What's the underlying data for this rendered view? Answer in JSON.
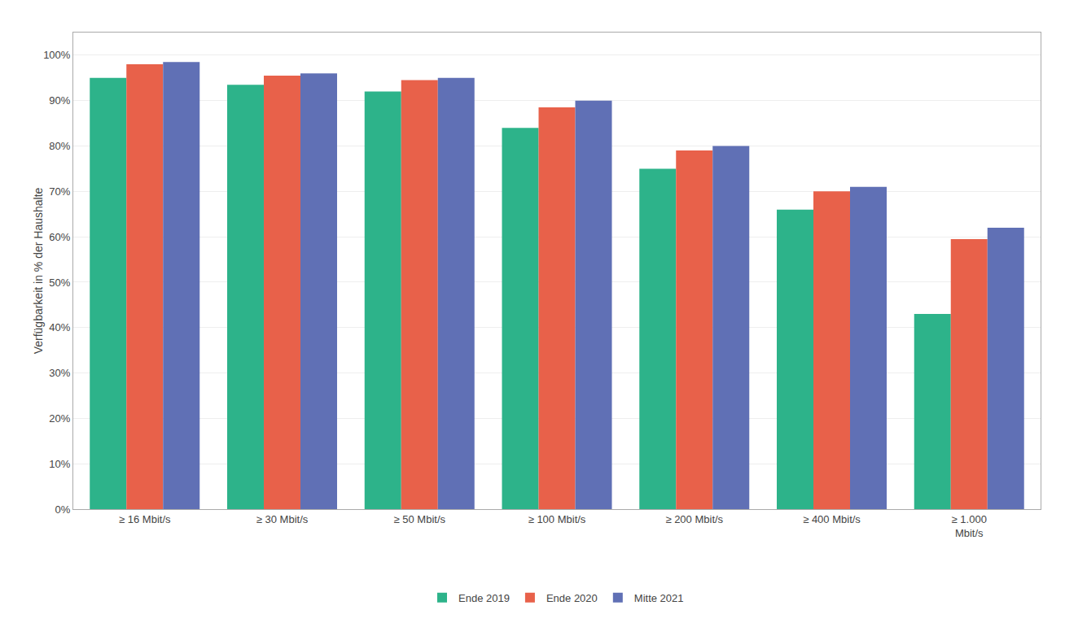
{
  "chart_data": {
    "type": "bar",
    "categories": [
      "≥ 16 Mbit/s",
      "≥ 30 Mbit/s",
      "≥ 50 Mbit/s",
      "≥ 100 Mbit/s",
      "≥ 200 Mbit/s",
      "≥ 400 Mbit/s",
      "≥ 1.000\nMbit/s"
    ],
    "series": [
      {
        "name": "Ende 2019",
        "color": "#2DB38A",
        "values": [
          0.95,
          0.935,
          0.92,
          0.84,
          0.75,
          0.66,
          0.43
        ]
      },
      {
        "name": "Ende 2020",
        "color": "#E8614A",
        "values": [
          0.98,
          0.955,
          0.945,
          0.885,
          0.79,
          0.7,
          0.595
        ]
      },
      {
        "name": "Mitte 2021",
        "color": "#6070B5",
        "values": [
          0.985,
          0.96,
          0.95,
          0.9,
          0.8,
          0.71,
          0.62
        ]
      }
    ],
    "ylabel": "Verfügbarkeit in % der Haushalte",
    "ylim": [
      0,
      1.05
    ],
    "yticks": [
      {
        "value": 0.0,
        "label": "0%"
      },
      {
        "value": 0.1,
        "label": "10%"
      },
      {
        "value": 0.2,
        "label": "20%"
      },
      {
        "value": 0.3,
        "label": "30%"
      },
      {
        "value": 0.4,
        "label": "40%"
      },
      {
        "value": 0.5,
        "label": "50%"
      },
      {
        "value": 0.6,
        "label": "60%"
      },
      {
        "value": 0.7,
        "label": "70%"
      },
      {
        "value": 0.8,
        "label": "80%"
      },
      {
        "value": 0.9,
        "label": "90%"
      },
      {
        "value": 1.0,
        "label": "100%"
      }
    ],
    "grid": true,
    "legend": "bottom"
  }
}
